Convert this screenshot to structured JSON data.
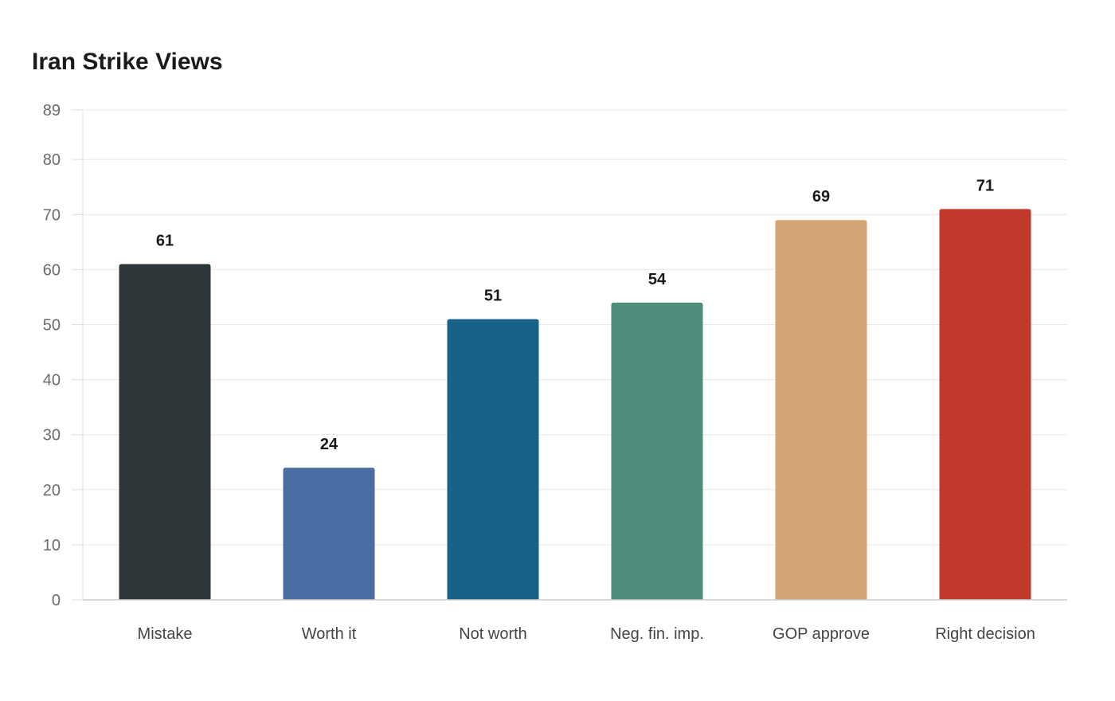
{
  "chart_data": {
    "type": "bar",
    "title": "Iran Strike Views",
    "xlabel": "",
    "ylabel": "",
    "categories": [
      "Mistake",
      "Worth it",
      "Not worth",
      "Neg. fin. imp.",
      "GOP approve",
      "Right decision"
    ],
    "values": [
      61,
      24,
      51,
      54,
      69,
      71
    ],
    "colors": [
      "#2d3638",
      "#4a6ea3",
      "#18628a",
      "#4e8d7c",
      "#d3a574",
      "#c0392b"
    ],
    "ylim": [
      0,
      89
    ],
    "yticks": [
      0,
      10,
      20,
      30,
      40,
      50,
      60,
      70,
      80,
      89
    ],
    "grid": true,
    "legend": "none"
  }
}
